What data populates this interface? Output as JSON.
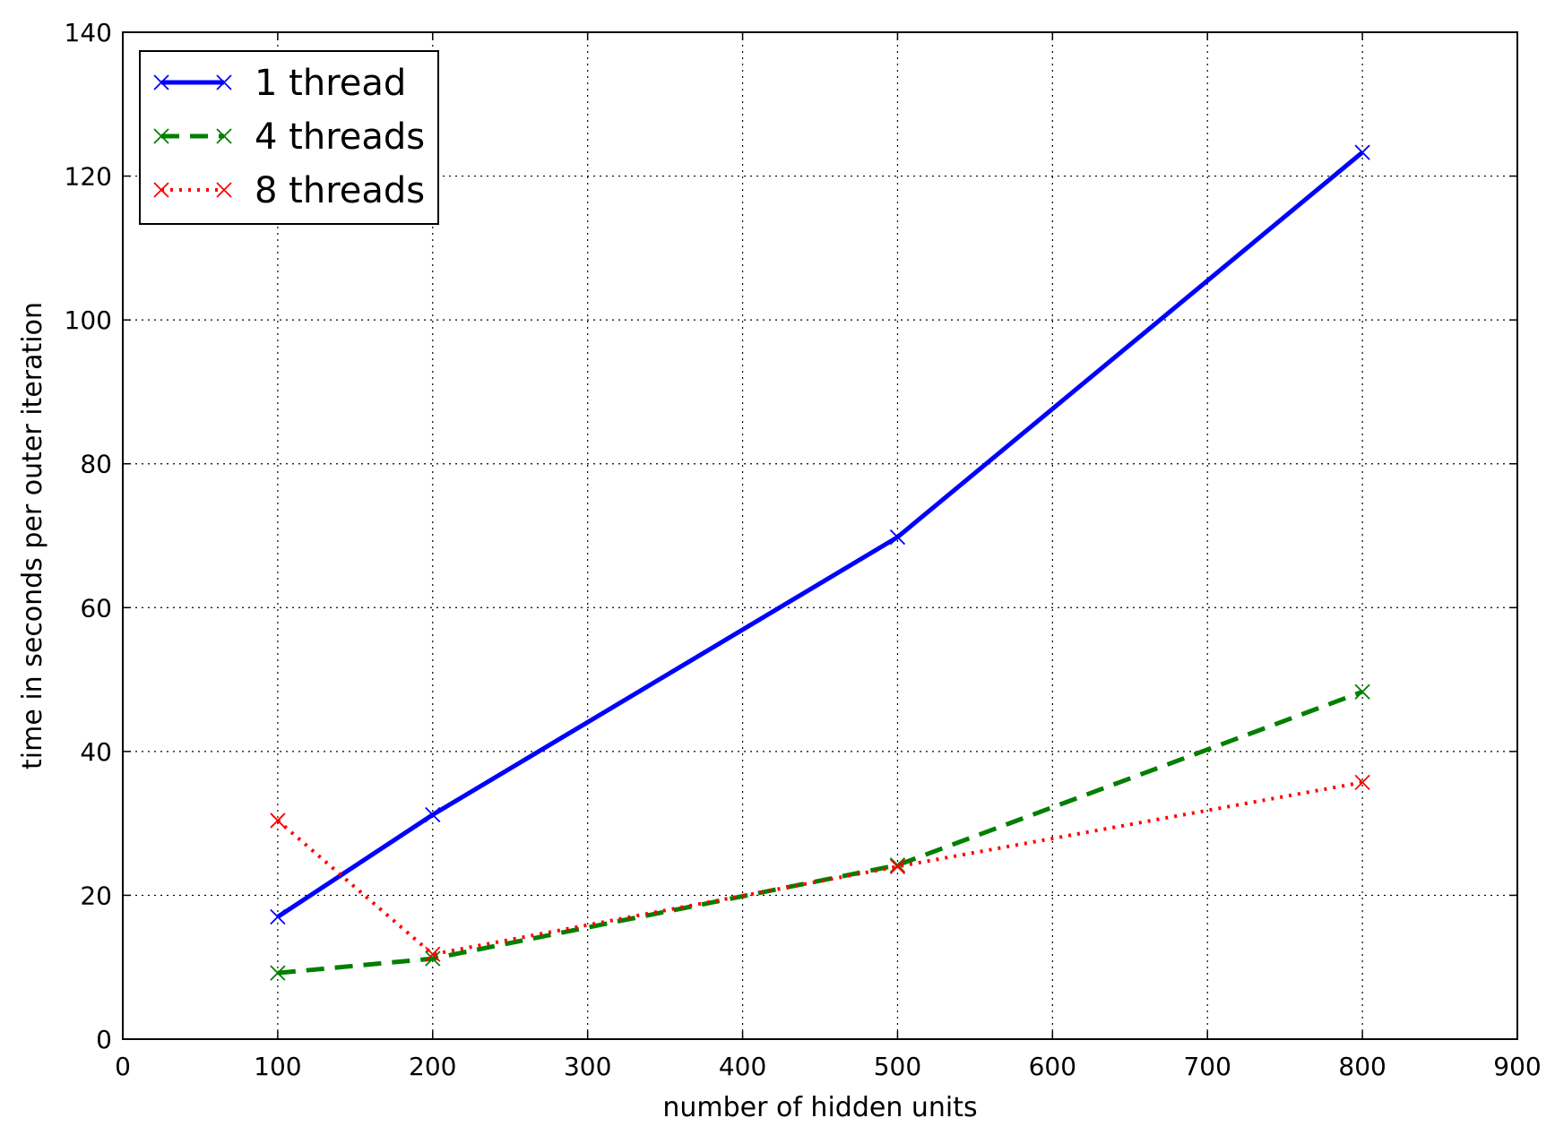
{
  "chart_data": {
    "type": "line",
    "title": "",
    "xlabel": "number of hidden units",
    "ylabel": "time in seconds per outer iteration",
    "xlim": [
      0,
      900
    ],
    "ylim": [
      0,
      140
    ],
    "xticks": [
      0,
      100,
      200,
      300,
      400,
      500,
      600,
      700,
      800,
      900
    ],
    "yticks": [
      0,
      20,
      40,
      60,
      80,
      100,
      120,
      140
    ],
    "xtick_labels": [
      "0",
      "100",
      "200",
      "300",
      "400",
      "500",
      "600",
      "700",
      "800",
      "900"
    ],
    "ytick_labels": [
      "0",
      "20",
      "40",
      "60",
      "80",
      "100",
      "120",
      "140"
    ],
    "grid": true,
    "legend_position": "top-left",
    "series": [
      {
        "name": "1 thread",
        "color": "#0000ff",
        "style": "solid",
        "marker": "x",
        "x": [
          100,
          200,
          500,
          800
        ],
        "y": [
          17,
          31.2,
          69.8,
          123.3
        ]
      },
      {
        "name": "4 threads",
        "color": "#007f00",
        "style": "dashed",
        "marker": "x",
        "x": [
          100,
          200,
          500,
          800
        ],
        "y": [
          9.2,
          11.2,
          24.2,
          48.3
        ]
      },
      {
        "name": "8 threads",
        "color": "#ff0000",
        "style": "dotted",
        "marker": "x",
        "x": [
          100,
          200,
          500,
          800
        ],
        "y": [
          30.4,
          11.8,
          24.0,
          35.7
        ]
      }
    ]
  }
}
